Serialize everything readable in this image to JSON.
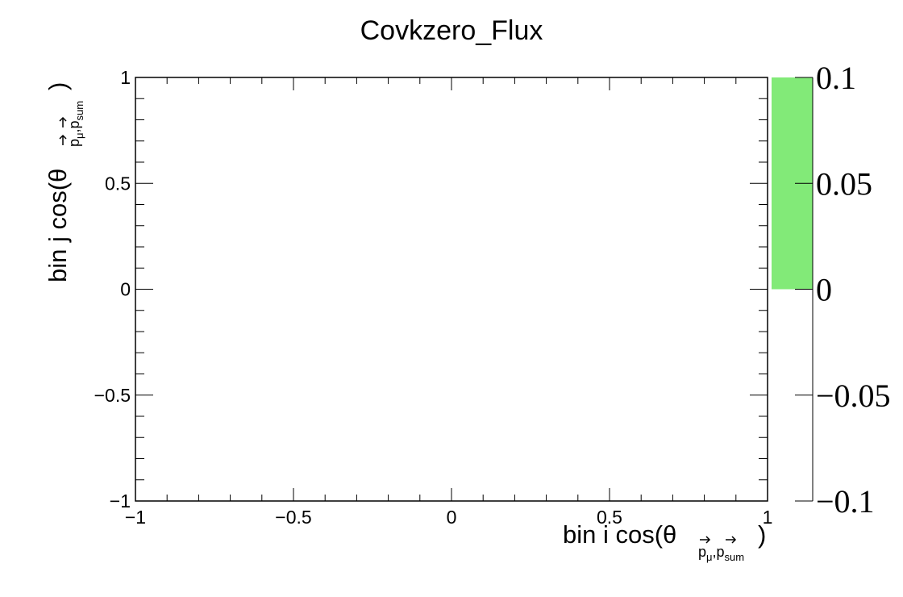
{
  "chart_data": {
    "type": "heatmap",
    "title": "Covkzero_Flux",
    "xlabel": {
      "prefix": "bin i cos(θ",
      "sub_p": "p",
      "sub_mu": "μ",
      "sub_comma": ",p",
      "sub_sum": "sum",
      "suffix": ")"
    },
    "ylabel": {
      "prefix": "bin j cos(θ",
      "sub_p": "p",
      "sub_mu": "μ",
      "sub_comma": ",p",
      "sub_sum": "sum",
      "suffix": ")"
    },
    "xlim": [
      -1,
      1
    ],
    "ylim": [
      -1,
      1
    ],
    "x_ticks": [
      {
        "value": -1,
        "label": "−1"
      },
      {
        "value": -0.5,
        "label": "−0.5"
      },
      {
        "value": 0,
        "label": "0"
      },
      {
        "value": 0.5,
        "label": "0.5"
      },
      {
        "value": 1,
        "label": "1"
      }
    ],
    "y_ticks": [
      {
        "value": 1,
        "label": "1"
      },
      {
        "value": 0.5,
        "label": "0.5"
      },
      {
        "value": 0,
        "label": "0"
      },
      {
        "value": -0.5,
        "label": "−0.5"
      },
      {
        "value": -1,
        "label": "−1"
      }
    ],
    "z_range": [
      -0.1,
      0.1
    ],
    "z_ticks": [
      {
        "value": 0.1,
        "label": "0.1"
      },
      {
        "value": 0.05,
        "label": "0.05"
      },
      {
        "value": 0,
        "label": "0"
      },
      {
        "value": -0.05,
        "label": "−0.05"
      },
      {
        "value": -0.1,
        "label": "−0.1"
      }
    ],
    "palette_fill": {
      "from": 0,
      "to": 0.1,
      "color": "#82ea78"
    },
    "cells": [],
    "grid": false
  }
}
